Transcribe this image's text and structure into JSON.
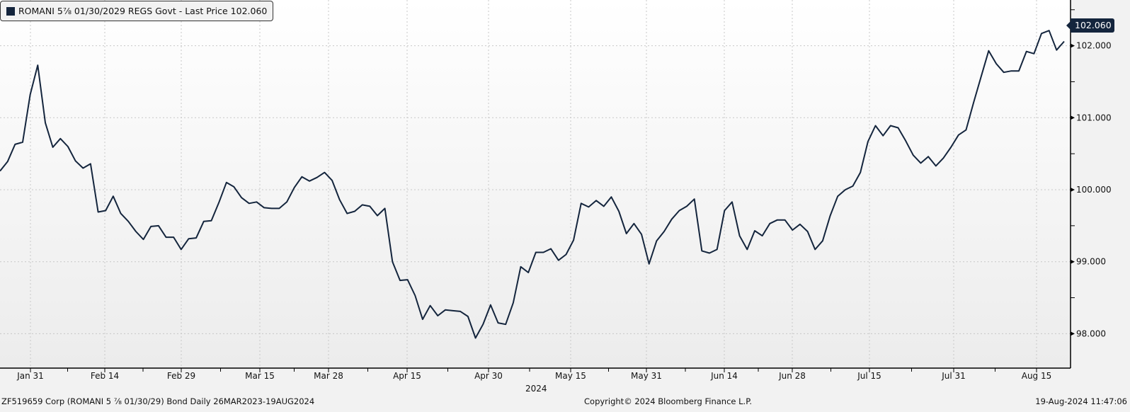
{
  "legend": {
    "label": "ROMANI 5⅞ 01/30/2029 REGS Govt - Last Price 102.060",
    "color": "#14253d"
  },
  "last_price_tag": "102.060",
  "footer": {
    "left": "ZF519659 Corp (ROMANI 5 ⅞ 01/30/29) Bond  Daily 26MAR2023-19AUG2024",
    "center": "Copyright© 2024 Bloomberg Finance L.P.",
    "right": "19-Aug-2024 11:47:06"
  },
  "chart_data": {
    "type": "line",
    "title": "",
    "xlabel": "2024",
    "ylabel": "",
    "ylim": [
      97.5,
      102.6
    ],
    "grid": true,
    "legend_placement": "top-left",
    "line_color": "#14253d",
    "y_ticks": [
      "98.000",
      "99.000",
      "100.000",
      "101.000",
      "102.000"
    ],
    "x_ticks": [
      "Jan 31",
      "Feb 14",
      "Feb 29",
      "Mar 15",
      "Mar 28",
      "Apr 15",
      "Apr 30",
      "May 15",
      "May 31",
      "Jun 14",
      "Jun 28",
      "Jul 15",
      "Jul 31",
      "Aug 15"
    ],
    "x_range": [
      "2024-01-22",
      "2024-08-19"
    ],
    "series": [
      {
        "name": "ROMANI 5⅞ 01/30/2029 REGS Govt - Last Price",
        "values": [
          100.26,
          100.39,
          100.63,
          100.66,
          101.32,
          101.73,
          100.93,
          100.59,
          100.71,
          100.6,
          100.4,
          100.3,
          100.36,
          99.69,
          99.71,
          99.91,
          99.67,
          99.56,
          99.42,
          99.31,
          99.49,
          99.5,
          99.34,
          99.34,
          99.17,
          99.32,
          99.33,
          99.56,
          99.57,
          99.82,
          100.1,
          100.04,
          99.89,
          99.81,
          99.83,
          99.75,
          99.74,
          99.74,
          99.83,
          100.03,
          100.18,
          100.12,
          100.17,
          100.24,
          100.13,
          99.86,
          99.67,
          99.7,
          99.79,
          99.77,
          99.64,
          99.74,
          99.0,
          98.74,
          98.75,
          98.53,
          98.2,
          98.39,
          98.25,
          98.33,
          98.32,
          98.31,
          98.24,
          97.94,
          98.13,
          98.4,
          98.15,
          98.13,
          98.43,
          98.93,
          98.85,
          99.13,
          99.13,
          99.18,
          99.02,
          99.1,
          99.3,
          99.81,
          99.76,
          99.85,
          99.77,
          99.9,
          99.7,
          99.39,
          99.53,
          99.38,
          98.97,
          99.29,
          99.42,
          99.59,
          99.71,
          99.77,
          99.87,
          99.15,
          99.12,
          99.17,
          99.71,
          99.83,
          99.36,
          99.17,
          99.43,
          99.36,
          99.53,
          99.58,
          99.58,
          99.44,
          99.52,
          99.42,
          99.17,
          99.29,
          99.64,
          99.91,
          100.0,
          100.05,
          100.24,
          100.67,
          100.89,
          100.75,
          100.89,
          100.86,
          100.68,
          100.48,
          100.37,
          100.46,
          100.33,
          100.44,
          100.59,
          100.76,
          100.83,
          101.21,
          101.57,
          101.93,
          101.75,
          101.63,
          101.65,
          101.65,
          101.92,
          101.89,
          102.17,
          102.21,
          101.94,
          102.06
        ]
      }
    ]
  }
}
